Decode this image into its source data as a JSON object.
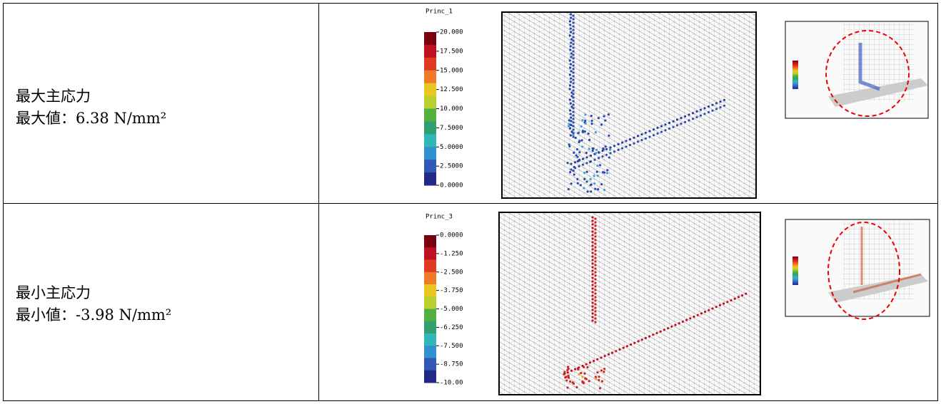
{
  "table": {
    "rows": [
      {
        "label": "最大主応力",
        "value": "最大値：6.38 N/mm²",
        "legend": {
          "title": "Princ_1",
          "labels": [
            "20.000",
            "17.500",
            "15.000",
            "12.500",
            "10.000",
            "7.5000",
            "5.0000",
            "2.5000",
            "0.0000"
          ]
        }
      },
      {
        "label": "最小主応力",
        "value": "最小値：-3.98 N/mm²",
        "legend": {
          "title": "Princ_3",
          "labels": [
            "0.0000",
            "-1.250",
            "-2.500",
            "-3.750",
            "-5.000",
            "-6.250",
            "-7.500",
            "-8.750",
            "-10.00"
          ]
        }
      }
    ]
  }
}
